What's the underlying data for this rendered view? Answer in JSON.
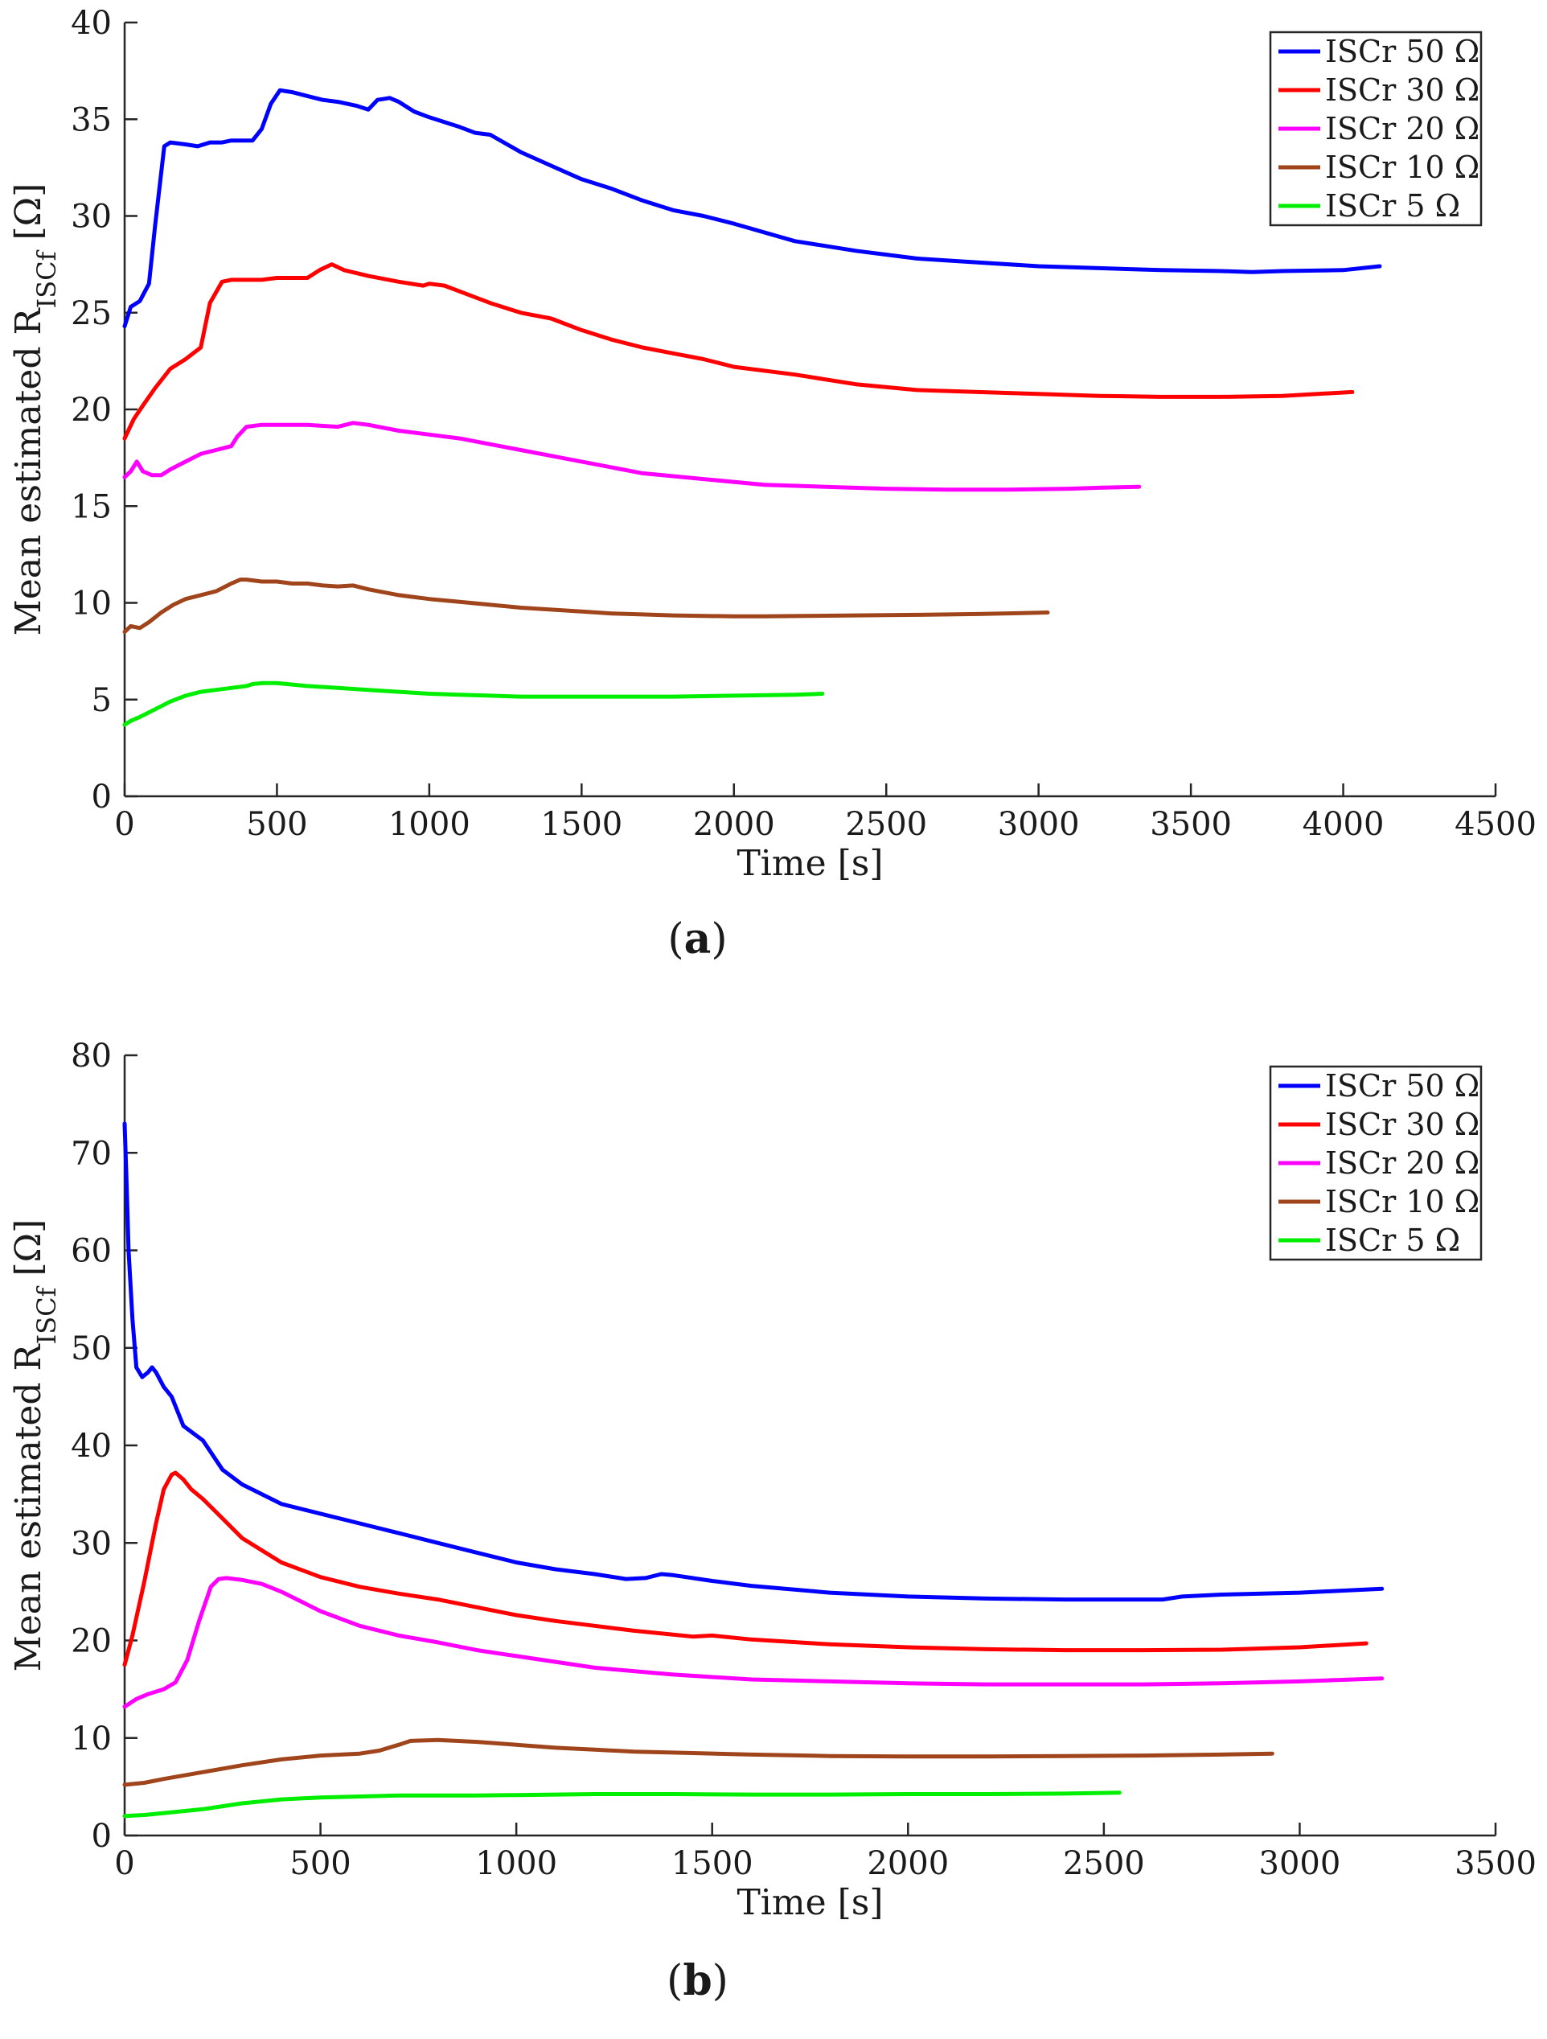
{
  "chart_data": [
    {
      "type": "line",
      "panel_label": "a",
      "xlabel": "Time [s]",
      "ylabel": {
        "prefix": "Mean estimated R",
        "subscript": "ISCf",
        "suffix": " [Ω]"
      },
      "xlim": [
        0,
        4500
      ],
      "ylim": [
        0,
        40
      ],
      "xticks": [
        0,
        500,
        1000,
        1500,
        2000,
        2500,
        3000,
        3500,
        4000,
        4500
      ],
      "yticks": [
        0,
        5,
        10,
        15,
        20,
        25,
        30,
        35,
        40
      ],
      "legend_position": "top-right",
      "series": [
        {
          "name": "ISCr 50 Ω",
          "color": "#0000ff",
          "x": [
            0,
            20,
            50,
            80,
            100,
            130,
            150,
            200,
            240,
            280,
            320,
            350,
            380,
            420,
            450,
            480,
            510,
            550,
            600,
            650,
            700,
            760,
            800,
            830,
            870,
            900,
            950,
            1000,
            1100,
            1150,
            1200,
            1300,
            1400,
            1500,
            1600,
            1700,
            1800,
            1900,
            2000,
            2200,
            2400,
            2600,
            2800,
            3000,
            3200,
            3400,
            3600,
            3700,
            3800,
            4000,
            4120
          ],
          "y": [
            24.3,
            25.3,
            25.6,
            26.5,
            29.5,
            33.6,
            33.8,
            33.7,
            33.6,
            33.8,
            33.8,
            33.9,
            33.9,
            33.9,
            34.5,
            35.8,
            36.5,
            36.4,
            36.2,
            36.0,
            35.9,
            35.7,
            35.5,
            36.0,
            36.1,
            35.9,
            35.4,
            35.1,
            34.6,
            34.3,
            34.2,
            33.3,
            32.6,
            31.9,
            31.4,
            30.8,
            30.3,
            30.0,
            29.6,
            28.7,
            28.2,
            27.8,
            27.6,
            27.4,
            27.3,
            27.2,
            27.15,
            27.1,
            27.15,
            27.2,
            27.4
          ]
        },
        {
          "name": "ISCr 30 Ω",
          "color": "#ff0000",
          "x": [
            0,
            30,
            60,
            100,
            150,
            200,
            250,
            280,
            320,
            350,
            400,
            450,
            500,
            550,
            600,
            640,
            680,
            720,
            800,
            900,
            980,
            1000,
            1050,
            1100,
            1200,
            1300,
            1400,
            1500,
            1600,
            1700,
            1800,
            1900,
            2000,
            2200,
            2400,
            2600,
            2800,
            3000,
            3200,
            3400,
            3600,
            3800,
            4030
          ],
          "y": [
            18.5,
            19.5,
            20.2,
            21.1,
            22.1,
            22.6,
            23.2,
            25.5,
            26.6,
            26.7,
            26.7,
            26.7,
            26.8,
            26.8,
            26.8,
            27.2,
            27.5,
            27.2,
            26.9,
            26.6,
            26.4,
            26.5,
            26.4,
            26.1,
            25.5,
            25.0,
            24.7,
            24.1,
            23.6,
            23.2,
            22.9,
            22.6,
            22.2,
            21.8,
            21.3,
            21.0,
            20.9,
            20.8,
            20.7,
            20.65,
            20.65,
            20.7,
            20.9
          ]
        },
        {
          "name": "ISCr 20 Ω",
          "color": "#ff00ff",
          "x": [
            0,
            20,
            40,
            60,
            90,
            120,
            150,
            200,
            250,
            300,
            350,
            370,
            400,
            450,
            500,
            600,
            700,
            750,
            800,
            900,
            1000,
            1050,
            1100,
            1200,
            1300,
            1400,
            1500,
            1700,
            1900,
            2100,
            2300,
            2500,
            2700,
            2900,
            3100,
            3200,
            3330
          ],
          "y": [
            16.5,
            16.8,
            17.3,
            16.8,
            16.6,
            16.6,
            16.9,
            17.3,
            17.7,
            17.9,
            18.1,
            18.6,
            19.1,
            19.2,
            19.2,
            19.2,
            19.1,
            19.3,
            19.2,
            18.9,
            18.7,
            18.6,
            18.5,
            18.2,
            17.9,
            17.6,
            17.3,
            16.7,
            16.4,
            16.1,
            16.0,
            15.9,
            15.85,
            15.85,
            15.9,
            15.95,
            16.0
          ]
        },
        {
          "name": "ISCr 10 Ω",
          "color": "#a0441b",
          "x": [
            0,
            20,
            50,
            80,
            120,
            160,
            200,
            250,
            300,
            350,
            380,
            400,
            450,
            500,
            550,
            600,
            650,
            700,
            750,
            800,
            900,
            1000,
            1100,
            1200,
            1300,
            1400,
            1500,
            1600,
            1700,
            1800,
            2000,
            2100,
            2200,
            2400,
            2600,
            2800,
            3030
          ],
          "y": [
            8.5,
            8.8,
            8.7,
            9.0,
            9.5,
            9.9,
            10.2,
            10.4,
            10.6,
            11.0,
            11.2,
            11.2,
            11.1,
            11.1,
            11.0,
            11.0,
            10.9,
            10.85,
            10.9,
            10.7,
            10.4,
            10.2,
            10.05,
            9.9,
            9.75,
            9.65,
            9.55,
            9.45,
            9.4,
            9.35,
            9.3,
            9.3,
            9.32,
            9.35,
            9.38,
            9.42,
            9.5
          ]
        },
        {
          "name": "ISCr 5 Ω",
          "color": "#00ee00",
          "x": [
            0,
            20,
            50,
            100,
            150,
            200,
            250,
            300,
            350,
            400,
            420,
            450,
            500,
            600,
            700,
            800,
            900,
            1000,
            1100,
            1200,
            1300,
            1400,
            1600,
            1800,
            2000,
            2200,
            2290
          ],
          "y": [
            3.7,
            3.9,
            4.1,
            4.5,
            4.9,
            5.2,
            5.4,
            5.5,
            5.6,
            5.7,
            5.8,
            5.85,
            5.85,
            5.7,
            5.6,
            5.5,
            5.4,
            5.3,
            5.25,
            5.2,
            5.15,
            5.15,
            5.15,
            5.15,
            5.2,
            5.25,
            5.3
          ]
        }
      ]
    },
    {
      "type": "line",
      "panel_label": "b",
      "xlabel": "Time [s]",
      "ylabel": {
        "prefix": "Mean estimated R",
        "subscript": "ISCf",
        "suffix": " [Ω]"
      },
      "xlim": [
        0,
        3500
      ],
      "ylim": [
        0,
        80
      ],
      "xticks": [
        0,
        500,
        1000,
        1500,
        2000,
        2500,
        3000,
        3500
      ],
      "yticks": [
        0,
        10,
        20,
        30,
        40,
        50,
        60,
        70,
        80
      ],
      "legend_position": "top-right",
      "series": [
        {
          "name": "ISCr 50 Ω",
          "color": "#0000ff",
          "x": [
            0,
            5,
            10,
            20,
            30,
            45,
            60,
            70,
            80,
            100,
            120,
            150,
            200,
            250,
            300,
            400,
            500,
            600,
            700,
            800,
            900,
            1000,
            1100,
            1200,
            1280,
            1330,
            1370,
            1400,
            1500,
            1600,
            1800,
            2000,
            2200,
            2400,
            2600,
            2650,
            2700,
            2800,
            3000,
            3210
          ],
          "y": [
            73,
            67,
            60,
            53,
            48,
            47,
            47.5,
            48,
            47.5,
            46,
            45,
            42,
            40.5,
            37.5,
            36,
            34,
            33,
            32,
            31,
            30,
            29,
            28,
            27.3,
            26.8,
            26.3,
            26.4,
            26.8,
            26.7,
            26.1,
            25.6,
            24.9,
            24.5,
            24.3,
            24.2,
            24.2,
            24.2,
            24.5,
            24.7,
            24.9,
            25.3
          ]
        },
        {
          "name": "ISCr 30 Ω",
          "color": "#ff0000",
          "x": [
            0,
            20,
            50,
            80,
            100,
            120,
            130,
            150,
            170,
            200,
            250,
            300,
            400,
            500,
            600,
            700,
            800,
            900,
            1000,
            1100,
            1200,
            1300,
            1400,
            1450,
            1500,
            1600,
            1800,
            2000,
            2200,
            2400,
            2600,
            2800,
            3000,
            3170
          ],
          "y": [
            17.5,
            20.5,
            26,
            32,
            35.5,
            37,
            37.2,
            36.5,
            35.5,
            34.5,
            32.5,
            30.5,
            28,
            26.5,
            25.5,
            24.8,
            24.2,
            23.4,
            22.6,
            22.0,
            21.5,
            21.0,
            20.6,
            20.4,
            20.5,
            20.1,
            19.6,
            19.3,
            19.1,
            19.0,
            19.0,
            19.05,
            19.3,
            19.7
          ]
        },
        {
          "name": "ISCr 20 Ω",
          "color": "#ff00ff",
          "x": [
            0,
            30,
            60,
            100,
            130,
            160,
            190,
            220,
            240,
            260,
            300,
            350,
            400,
            500,
            600,
            700,
            800,
            900,
            1000,
            1200,
            1400,
            1600,
            1800,
            2000,
            2200,
            2400,
            2600,
            2800,
            3000,
            3210
          ],
          "y": [
            13.2,
            14.0,
            14.5,
            15.0,
            15.7,
            18.0,
            22.0,
            25.5,
            26.3,
            26.4,
            26.2,
            25.8,
            25.0,
            23.0,
            21.5,
            20.5,
            19.8,
            19.0,
            18.4,
            17.2,
            16.5,
            16.0,
            15.8,
            15.6,
            15.5,
            15.5,
            15.5,
            15.6,
            15.8,
            16.1
          ]
        },
        {
          "name": "ISCr 10 Ω",
          "color": "#a0441b",
          "x": [
            0,
            50,
            100,
            200,
            300,
            400,
            500,
            600,
            650,
            700,
            730,
            800,
            900,
            1000,
            1100,
            1200,
            1300,
            1400,
            1600,
            1800,
            2000,
            2200,
            2400,
            2600,
            2800,
            2930
          ],
          "y": [
            5.2,
            5.4,
            5.8,
            6.5,
            7.2,
            7.8,
            8.2,
            8.4,
            8.7,
            9.3,
            9.7,
            9.8,
            9.6,
            9.3,
            9.0,
            8.8,
            8.6,
            8.5,
            8.3,
            8.15,
            8.1,
            8.1,
            8.15,
            8.2,
            8.3,
            8.4
          ]
        },
        {
          "name": "ISCr 5 Ω",
          "color": "#00ee00",
          "x": [
            0,
            50,
            100,
            200,
            300,
            400,
            500,
            600,
            700,
            800,
            900,
            1000,
            1100,
            1200,
            1400,
            1600,
            1800,
            2000,
            2200,
            2400,
            2540
          ],
          "y": [
            2.0,
            2.1,
            2.3,
            2.7,
            3.3,
            3.7,
            3.9,
            4.0,
            4.1,
            4.1,
            4.1,
            4.15,
            4.2,
            4.25,
            4.25,
            4.2,
            4.2,
            4.25,
            4.25,
            4.3,
            4.4
          ]
        }
      ]
    }
  ]
}
